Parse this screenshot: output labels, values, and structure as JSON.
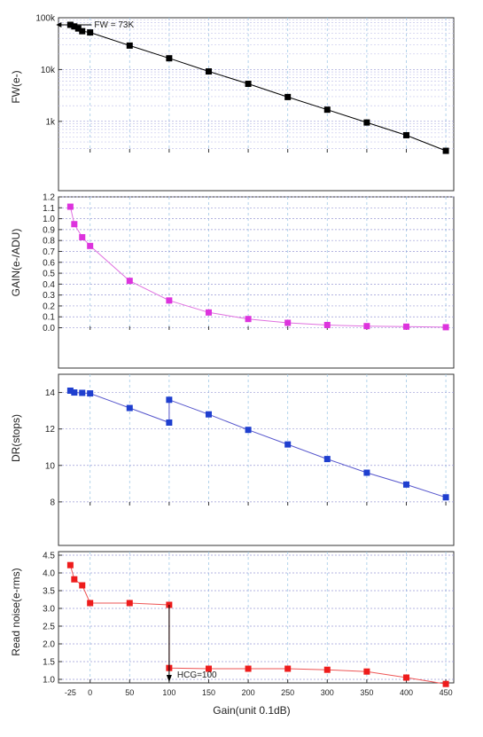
{
  "chart_data": [
    {
      "type": "line",
      "ylabel": "FW(e-)",
      "yscale": "log",
      "ylim": [
        250,
        100000
      ],
      "yticks": [
        1000,
        10000,
        100000
      ],
      "ytick_labels": [
        "1k",
        "10k",
        "100k"
      ],
      "xlim": [
        -40,
        460
      ],
      "grid": true,
      "color": "#000000",
      "marker_color": "#000000",
      "x": [
        -25,
        -20,
        -15,
        -10,
        0,
        50,
        100,
        150,
        200,
        250,
        300,
        350,
        400,
        450
      ],
      "values": [
        73000,
        68000,
        62000,
        55000,
        52000,
        29000,
        16500,
        9200,
        5300,
        2950,
        1680,
        950,
        540,
        270
      ],
      "annotation": "FW = 73K"
    },
    {
      "type": "line",
      "ylabel": "GAIN(e-/ADU)",
      "ylim": [
        -0.02,
        1.2
      ],
      "yticks": [
        0.0,
        0.1,
        0.2,
        0.3,
        0.4,
        0.5,
        0.6,
        0.7,
        0.8,
        0.9,
        1.0,
        1.1,
        1.2
      ],
      "ytick_labels": [
        "0.0",
        "0.1",
        "0.2",
        "0.3",
        "0.4",
        "0.5",
        "0.6",
        "0.7",
        "0.8",
        "0.9",
        "1.0",
        "1.1",
        "1.2"
      ],
      "xlim": [
        -40,
        460
      ],
      "grid": true,
      "color": "#e070e0",
      "marker_color": "#dd33dd",
      "x": [
        -25,
        -20,
        -10,
        0,
        50,
        100,
        150,
        200,
        250,
        300,
        350,
        400,
        450
      ],
      "values": [
        1.11,
        0.95,
        0.83,
        0.75,
        0.43,
        0.25,
        0.14,
        0.08,
        0.045,
        0.025,
        0.015,
        0.01,
        0.005
      ]
    },
    {
      "type": "line",
      "ylabel": "DR(stops)",
      "ylim": [
        7.8,
        15.0
      ],
      "yticks": [
        8,
        10,
        12,
        14
      ],
      "ytick_labels": [
        "8",
        "10",
        "12",
        "14"
      ],
      "xlim": [
        -40,
        460
      ],
      "grid": true,
      "color": "#5555cc",
      "marker_color": "#1f3fcf",
      "x": [
        -25,
        -20,
        -10,
        0,
        50,
        100,
        100,
        150,
        200,
        250,
        300,
        350,
        400,
        450
      ],
      "values": [
        14.1,
        14.0,
        13.98,
        13.95,
        13.15,
        12.35,
        13.6,
        12.8,
        11.95,
        11.15,
        10.35,
        9.6,
        8.95,
        8.25
      ]
    },
    {
      "type": "line",
      "ylabel": "Read noise(e-rms)",
      "xlabel": "Gain(unit 0.1dB)",
      "ylim": [
        0.9,
        4.6
      ],
      "yticks": [
        1.0,
        1.5,
        2.0,
        2.5,
        3.0,
        3.5,
        4.0,
        4.5
      ],
      "ytick_labels": [
        "1.0",
        "1.5",
        "2.0",
        "2.5",
        "3.0",
        "3.5",
        "4.0",
        "4.5"
      ],
      "xlim": [
        -40,
        460
      ],
      "xticks": [
        -25,
        0,
        50,
        100,
        150,
        200,
        250,
        300,
        350,
        400,
        450
      ],
      "xtick_labels": [
        "-25",
        "0",
        "50",
        "100",
        "150",
        "200",
        "250",
        "300",
        "350",
        "400",
        "450"
      ],
      "grid": true,
      "color": "#ee5555",
      "marker_color": "#ee1c1c",
      "x": [
        -25,
        -20,
        -10,
        0,
        50,
        100,
        100,
        150,
        200,
        250,
        300,
        350,
        400,
        450
      ],
      "values": [
        4.22,
        3.82,
        3.65,
        3.15,
        3.15,
        3.1,
        1.32,
        1.3,
        1.3,
        1.3,
        1.27,
        1.22,
        1.05,
        0.87
      ],
      "annotation": "HCG=100"
    }
  ]
}
